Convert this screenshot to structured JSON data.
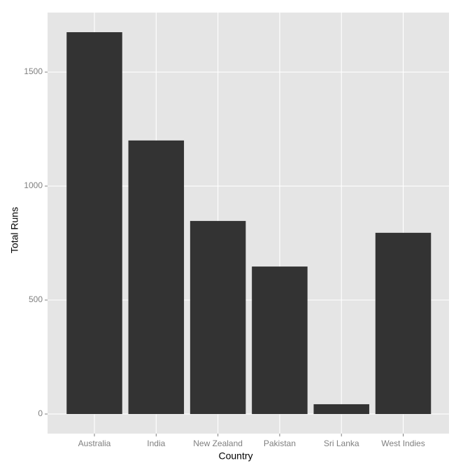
{
  "chart_data": {
    "type": "bar",
    "x_label": "Country",
    "y_label": "Total Runs",
    "categories": [
      "Australia",
      "India",
      "New Zealand",
      "Pakistan",
      "Sri Lanka",
      "West Indies"
    ],
    "values": [
      1675,
      1200,
      847,
      647,
      43,
      795
    ],
    "color": "#333333",
    "ylim": [
      -86,
      1761
    ],
    "yticks": [
      0,
      500,
      1000,
      1500
    ],
    "grid": true
  }
}
